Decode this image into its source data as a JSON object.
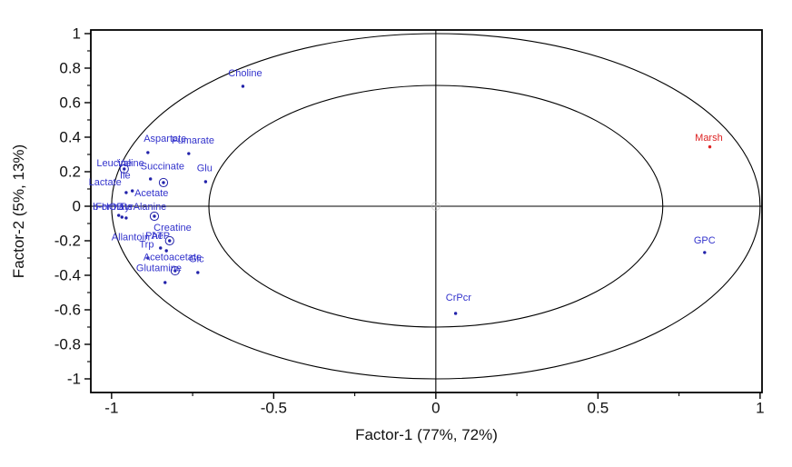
{
  "chart_data": {
    "type": "scatter",
    "title": "",
    "xlabel": "Factor-1 (77%, 72%)",
    "ylabel": "Factor-2 (5%, 13%)",
    "xlim": [
      -1.064,
      1.006
    ],
    "ylim": [
      -1.079,
      1.021
    ],
    "grid": false,
    "legend": "none",
    "crosshair_at_zero": true,
    "ellipses": [
      {
        "cx": 0,
        "cy": 0,
        "rx": 1.0,
        "ry": 1.0
      },
      {
        "cx": 0,
        "cy": 0,
        "rx": 0.7,
        "ry": 0.7
      }
    ],
    "x_ticks": [
      {
        "v": -1,
        "t": "-1"
      },
      {
        "v": -0.5,
        "t": "-0.5"
      },
      {
        "v": 0,
        "t": "0"
      },
      {
        "v": 0.5,
        "t": "0.5"
      },
      {
        "v": 1,
        "t": "1"
      }
    ],
    "x_minor_ticks": [
      -0.75,
      -0.25,
      0.25,
      0.75
    ],
    "y_ticks": [
      {
        "v": 1,
        "t": "1"
      },
      {
        "v": 0.8,
        "t": "0.8"
      },
      {
        "v": 0.6,
        "t": "0.6"
      },
      {
        "v": 0.4,
        "t": "0.4"
      },
      {
        "v": 0.2,
        "t": "0.2"
      },
      {
        "v": 0,
        "t": "0"
      },
      {
        "v": -0.2,
        "t": "-0.2"
      },
      {
        "v": -0.4,
        "t": "-0.4"
      },
      {
        "v": -0.6,
        "t": "-0.6"
      },
      {
        "v": -0.8,
        "t": "-0.8"
      },
      {
        "v": -1,
        "t": "-1"
      }
    ],
    "y_minor_ticks": [
      0.9,
      0.7,
      0.5,
      0.3,
      0.1,
      -0.1,
      -0.3,
      -0.5,
      -0.7,
      -0.9
    ],
    "colors": {
      "label_blue": "#3333cc",
      "point_blue": "#2222aa",
      "highlight_red": "#dd2222",
      "axis": "#000000",
      "faint": "#bbbbbb"
    },
    "origin_mark": {
      "x": 0,
      "y": 0,
      "marker": "circle",
      "color": "faint"
    },
    "points": [
      {
        "x": -0.595,
        "y": 0.695,
        "marker": "dot",
        "series": "variable"
      },
      {
        "x": -0.888,
        "y": 0.311,
        "marker": "dot",
        "series": "variable"
      },
      {
        "x": -0.762,
        "y": 0.305,
        "marker": "dot",
        "series": "variable"
      },
      {
        "x": -0.961,
        "y": 0.216,
        "marker": "circle",
        "series": "variable"
      },
      {
        "x": -0.88,
        "y": 0.158,
        "marker": "dot",
        "series": "variable"
      },
      {
        "x": -0.84,
        "y": 0.137,
        "marker": "circle",
        "series": "variable"
      },
      {
        "x": -0.71,
        "y": 0.142,
        "marker": "dot",
        "series": "variable"
      },
      {
        "x": -0.936,
        "y": 0.089,
        "marker": "dot",
        "series": "variable"
      },
      {
        "x": -0.955,
        "y": 0.079,
        "marker": "dot",
        "series": "variable"
      },
      {
        "x": -0.978,
        "y": -0.053,
        "marker": "dot",
        "series": "variable"
      },
      {
        "x": -0.968,
        "y": -0.063,
        "marker": "dot",
        "series": "variable"
      },
      {
        "x": -0.955,
        "y": -0.068,
        "marker": "dot",
        "series": "variable"
      },
      {
        "x": -0.868,
        "y": -0.058,
        "marker": "circle",
        "series": "variable"
      },
      {
        "x": -0.821,
        "y": -0.2,
        "marker": "circle",
        "series": "variable"
      },
      {
        "x": -0.849,
        "y": -0.242,
        "marker": "dot",
        "series": "variable"
      },
      {
        "x": -0.831,
        "y": -0.258,
        "marker": "dot",
        "series": "variable"
      },
      {
        "x": -0.888,
        "y": -0.3,
        "marker": "dot",
        "series": "variable"
      },
      {
        "x": -0.804,
        "y": -0.374,
        "marker": "circle",
        "series": "variable"
      },
      {
        "x": -0.734,
        "y": -0.384,
        "marker": "dot",
        "series": "variable"
      },
      {
        "x": -0.835,
        "y": -0.442,
        "marker": "dot",
        "series": "variable"
      },
      {
        "x": 0.061,
        "y": -0.621,
        "marker": "dot",
        "series": "variable"
      },
      {
        "x": 0.829,
        "y": -0.268,
        "marker": "dot",
        "series": "variable"
      },
      {
        "x": 0.845,
        "y": 0.344,
        "marker": "dot",
        "series": "highlight"
      }
    ],
    "labels": [
      {
        "text": "Choline",
        "x": -0.588,
        "y": 0.768,
        "series": "variable"
      },
      {
        "text": "Aspartate",
        "x": -0.835,
        "y": 0.389,
        "series": "variable"
      },
      {
        "text": "Fumarate",
        "x": -0.749,
        "y": 0.379,
        "series": "variable"
      },
      {
        "text": "Leucine",
        "x": -0.992,
        "y": 0.247,
        "series": "variable"
      },
      {
        "text": "Valine",
        "x": -0.941,
        "y": 0.247,
        "series": "variable"
      },
      {
        "text": "Ile",
        "x": -0.958,
        "y": 0.176,
        "series": "variable"
      },
      {
        "text": "Succinate",
        "x": -0.843,
        "y": 0.229,
        "series": "variable"
      },
      {
        "text": "Glu",
        "x": -0.713,
        "y": 0.218,
        "series": "variable"
      },
      {
        "text": "Lactate",
        "x": -1.02,
        "y": 0.137,
        "series": "variable"
      },
      {
        "text": "Acetate",
        "x": -0.877,
        "y": 0.074,
        "series": "variable"
      },
      {
        "text": "b-HOB",
        "x": -1.011,
        "y": -0.005,
        "series": "variable"
      },
      {
        "text": "Formate",
        "x": -0.992,
        "y": -0.005,
        "series": "variable"
      },
      {
        "text": "Tyr",
        "x": -0.955,
        "y": -0.005,
        "series": "variable"
      },
      {
        "text": "Alanine",
        "x": -0.882,
        "y": -0.005,
        "series": "variable"
      },
      {
        "text": "Creatine",
        "x": -0.812,
        "y": -0.126,
        "series": "variable"
      },
      {
        "text": "Allantoin",
        "x": -0.941,
        "y": -0.182,
        "series": "variable"
      },
      {
        "text": "Phe",
        "x": -0.868,
        "y": -0.174,
        "series": "variable"
      },
      {
        "text": "ATP",
        "x": -0.849,
        "y": -0.174,
        "series": "variable"
      },
      {
        "text": "Trp",
        "x": -0.892,
        "y": -0.224,
        "series": "variable"
      },
      {
        "text": "Acetoacetate",
        "x": -0.812,
        "y": -0.297,
        "series": "variable"
      },
      {
        "text": "Glc",
        "x": -0.738,
        "y": -0.308,
        "series": "variable"
      },
      {
        "text": "Glutamine",
        "x": -0.854,
        "y": -0.361,
        "series": "variable"
      },
      {
        "text": "CrPcr",
        "x": 0.07,
        "y": -0.532,
        "series": "variable"
      },
      {
        "text": "GPC",
        "x": 0.829,
        "y": -0.2,
        "series": "variable"
      },
      {
        "text": "Marsh",
        "x": 0.842,
        "y": 0.395,
        "series": "highlight"
      }
    ]
  }
}
